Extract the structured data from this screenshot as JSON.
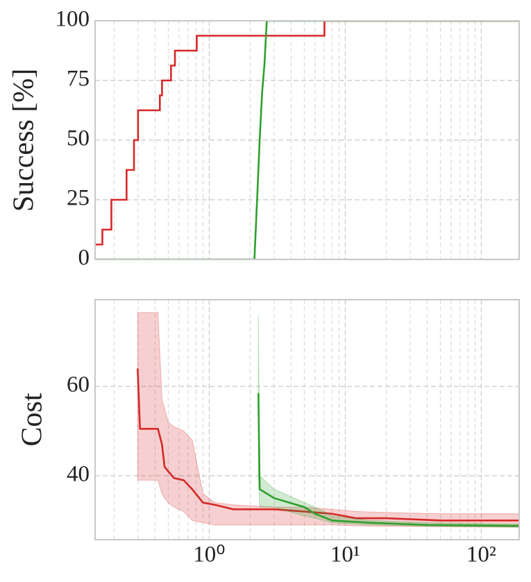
{
  "chart_data": [
    {
      "type": "line",
      "ylabel": "Success [%]",
      "xscale": "log",
      "grid": true,
      "xlim": [
        0.145,
        190
      ],
      "ylim": [
        0,
        100
      ],
      "yticks": [
        0,
        25,
        50,
        75,
        100
      ],
      "xticks": [
        1,
        10,
        100
      ],
      "show_xtick_labels": false,
      "xminorticks": [
        0.2,
        0.3,
        0.4,
        0.5,
        0.6,
        0.7,
        0.8,
        0.9,
        2,
        3,
        4,
        5,
        6,
        7,
        8,
        9,
        20,
        30,
        40,
        50,
        60,
        70,
        80,
        90
      ],
      "series": [
        {
          "color": "#d62728",
          "drawstyle": "steps-post",
          "x": [
            0.145,
            0.164,
            0.191,
            0.247,
            0.28,
            0.3,
            0.434,
            0.45,
            0.524,
            0.56,
            0.81,
            7.03,
            190
          ],
          "values": [
            6.25,
            12.5,
            25,
            37.5,
            50,
            62.5,
            68.75,
            75,
            81.25,
            87.5,
            93.75,
            100,
            100
          ]
        },
        {
          "color": "#2ca02c",
          "drawstyle": "default",
          "x": [
            0.145,
            2.15,
            2.25,
            2.35,
            2.45,
            2.55,
            2.65,
            190
          ],
          "values": [
            0,
            0,
            25,
            50,
            70,
            82,
            100,
            100
          ]
        }
      ]
    },
    {
      "type": "line",
      "ylabel": "Cost",
      "xscale": "log",
      "grid": true,
      "xlim": [
        0.145,
        190
      ],
      "ylim": [
        25.7,
        79.4
      ],
      "yticks": [
        40,
        60
      ],
      "xticks": [
        {
          "value": 1,
          "label": "10⁰"
        },
        {
          "value": 10,
          "label": "10¹"
        },
        {
          "value": 100,
          "label": "10²"
        }
      ],
      "show_xtick_labels": true,
      "xminorticks": [
        0.2,
        0.3,
        0.4,
        0.5,
        0.6,
        0.7,
        0.8,
        0.9,
        2,
        3,
        4,
        5,
        6,
        7,
        8,
        9,
        20,
        30,
        40,
        50,
        60,
        70,
        80,
        90
      ],
      "series": [
        {
          "color": "#d62728",
          "drawstyle": "default",
          "x": [
            0.298,
            0.31,
            0.42,
            0.45,
            0.47,
            0.5,
            0.55,
            0.65,
            0.75,
            0.9,
            1.1,
            1.5,
            3,
            5,
            8,
            12,
            20,
            50,
            190
          ],
          "values": [
            64,
            50.5,
            50.5,
            47,
            42,
            41,
            39.5,
            39,
            37,
            34,
            33.5,
            32.5,
            32.5,
            32,
            31.5,
            30.5,
            30.5,
            30,
            30
          ],
          "lower": [
            39,
            39,
            39,
            36,
            35,
            34,
            33,
            32,
            30,
            29.5,
            29,
            29,
            29,
            29,
            29,
            28.8,
            28.7,
            28.6,
            28.5
          ],
          "upper": [
            76.5,
            76.5,
            76.5,
            57,
            55,
            52,
            51,
            50,
            48,
            36,
            34,
            33.5,
            33,
            33,
            32.5,
            32,
            31.8,
            31.5,
            31.5
          ]
        },
        {
          "color": "#2ca02c",
          "drawstyle": "default",
          "x": [
            2.3,
            2.35,
            3,
            5,
            6,
            8,
            15,
            40,
            190
          ],
          "values": [
            58.5,
            37,
            35,
            33,
            31.5,
            30,
            29.5,
            29,
            28.8
          ],
          "lower": [
            40,
            33,
            33,
            31,
            30.5,
            29.5,
            29,
            28.7,
            28.5
          ],
          "upper": [
            76,
            40,
            37,
            34,
            33,
            31,
            30,
            29.5,
            29.2
          ]
        }
      ]
    }
  ]
}
